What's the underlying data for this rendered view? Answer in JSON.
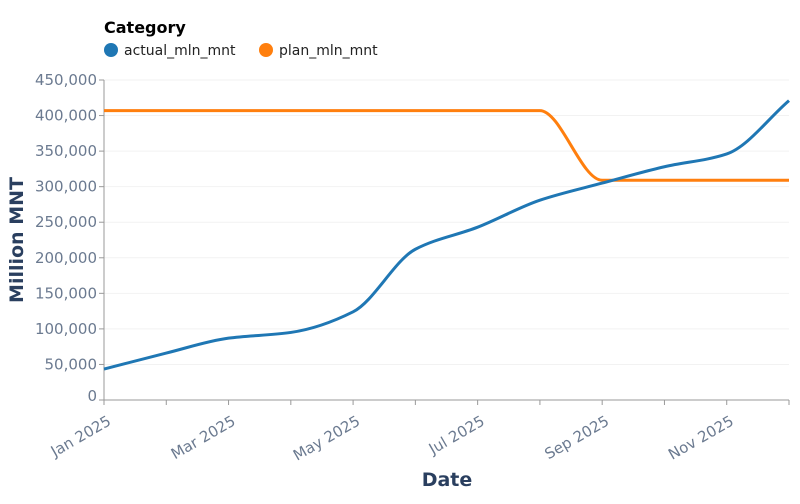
{
  "chart_data": {
    "type": "line",
    "title": "",
    "xlabel": "Date",
    "ylabel": "Million MNT",
    "legend": {
      "title": "Category",
      "placement": "top-left"
    },
    "x": [
      "2025-01",
      "2025-02",
      "2025-03",
      "2025-04",
      "2025-05",
      "2025-06",
      "2025-07",
      "2025-08",
      "2025-09",
      "2025-10",
      "2025-11",
      "2025-12"
    ],
    "x_tick_labels": [
      "Jan 2025",
      "Mar 2025",
      "May 2025",
      "Jul 2025",
      "Sep 2025",
      "Nov 2025"
    ],
    "y_tick_labels": [
      "0",
      "50,000",
      "100,000",
      "150,000",
      "200,000",
      "250,000",
      "300,000",
      "350,000",
      "400,000",
      "450,000"
    ],
    "ylim": [
      0,
      450000
    ],
    "grid": true,
    "series": [
      {
        "name": "actual_mln_mnt",
        "color": "#1f77b4",
        "values": [
          43500,
          66000,
          87000,
          95000,
          124000,
          212000,
          243000,
          281000,
          305000,
          328000,
          346000,
          421000
        ]
      },
      {
        "name": "plan_mln_mnt",
        "color": "#ff7f0e",
        "values": [
          407000,
          407000,
          407000,
          407000,
          407000,
          407000,
          407000,
          407000,
          309000,
          309000,
          309000,
          309000
        ]
      }
    ]
  }
}
